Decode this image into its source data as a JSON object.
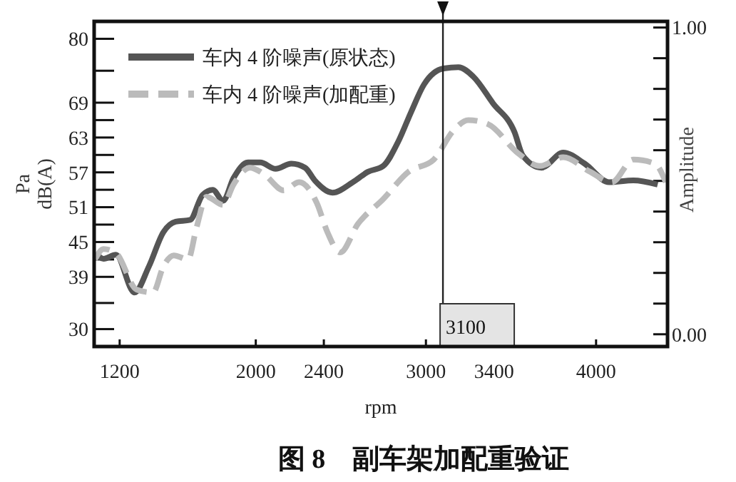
{
  "chart_data": {
    "type": "line",
    "title": "图 8　副车架加配重验证",
    "xlabel": "rpm",
    "ylabel": "Pa\ndB(A)",
    "y2label": "Amplitude",
    "xlim": [
      1050,
      4420
    ],
    "xticks": [
      1200,
      2000,
      2400,
      3000,
      3400,
      4000
    ],
    "ylim": [
      27,
      83
    ],
    "yticks": [
      30,
      {
        "value": 34.5,
        "label": null
      },
      39,
      {
        "value": 42,
        "label": null
      },
      45,
      {
        "value": 48,
        "label": null
      },
      51,
      {
        "value": 54,
        "label": null
      },
      57,
      {
        "value": 60,
        "label": null
      },
      63,
      {
        "value": 66,
        "label": null
      },
      69,
      {
        "value": 74.5,
        "label": null
      },
      80
    ],
    "y2lim": [
      -0.04,
      1.02
    ],
    "y2ticks": [
      {
        "value": 0,
        "label": "0.00"
      },
      {
        "value": 0.1,
        "label": null
      },
      {
        "value": 0.2,
        "label": null
      },
      {
        "value": 0.3,
        "label": null
      },
      {
        "value": 0.4,
        "label": null
      },
      {
        "value": 0.5,
        "label": null
      },
      {
        "value": 0.6,
        "label": null
      },
      {
        "value": 0.7,
        "label": null
      },
      {
        "value": 0.8,
        "label": null
      },
      {
        "value": 0.9,
        "label": null
      },
      {
        "value": 1,
        "label": "1.00"
      }
    ],
    "grid": false,
    "legend": "top left",
    "marker": "none",
    "ref_lines": [
      {
        "axis": "x",
        "value": 3100,
        "label": "3100",
        "color": "#222222"
      }
    ],
    "series": [
      {
        "name": "车内 4 阶噪声(原状态)",
        "color": "#555555",
        "line_style": "solid",
        "x": [
          1060,
          1105,
          1178,
          1287,
          1372,
          1457,
          1529,
          1614,
          1687,
          1747,
          1808,
          1869,
          1954,
          2026,
          2117,
          2209,
          2290,
          2347,
          2451,
          2570,
          2660,
          2749,
          2839,
          2913,
          2988,
          3104,
          3191,
          3278,
          3394,
          3521,
          3569,
          3679,
          3807,
          3933,
          4076,
          4219,
          4362
        ],
        "values": [
          43.1,
          42.1,
          42.8,
          36.3,
          40.8,
          46.7,
          48.5,
          48.8,
          53.1,
          54.0,
          52.1,
          56.0,
          58.7,
          58.7,
          57.6,
          58.5,
          57.8,
          55.6,
          53.5,
          55.3,
          57.1,
          58.1,
          62.4,
          67.4,
          72.1,
          74.9,
          75.1,
          73.5,
          68.9,
          63.9,
          59.9,
          57.8,
          60.4,
          58.5,
          55.3,
          55.6,
          54.9
        ]
      },
      {
        "name": "车内 4 阶噪声(加配重)",
        "color": "#bbbbbb",
        "line_style": "dashed",
        "x": [
          1055,
          1105,
          1178,
          1300,
          1396,
          1457,
          1518,
          1602,
          1651,
          1711,
          1808,
          1869,
          1966,
          2048,
          2164,
          2255,
          2359,
          2421,
          2496,
          2600,
          2749,
          2898,
          3046,
          3162,
          3249,
          3365,
          3541,
          3669,
          3807,
          3965,
          4092,
          4219,
          4346,
          4410
        ],
        "values": [
          42.0,
          43.8,
          43.1,
          36.8,
          36.3,
          40.8,
          42.7,
          42.0,
          47.4,
          52.8,
          51.4,
          54.9,
          57.8,
          56.7,
          53.9,
          55.3,
          51.7,
          46.7,
          43.2,
          48.1,
          52.4,
          57.1,
          59.2,
          64.2,
          66.0,
          65.3,
          60.3,
          58.1,
          59.6,
          57.1,
          55.3,
          59.2,
          58.5,
          55.3
        ]
      }
    ]
  }
}
